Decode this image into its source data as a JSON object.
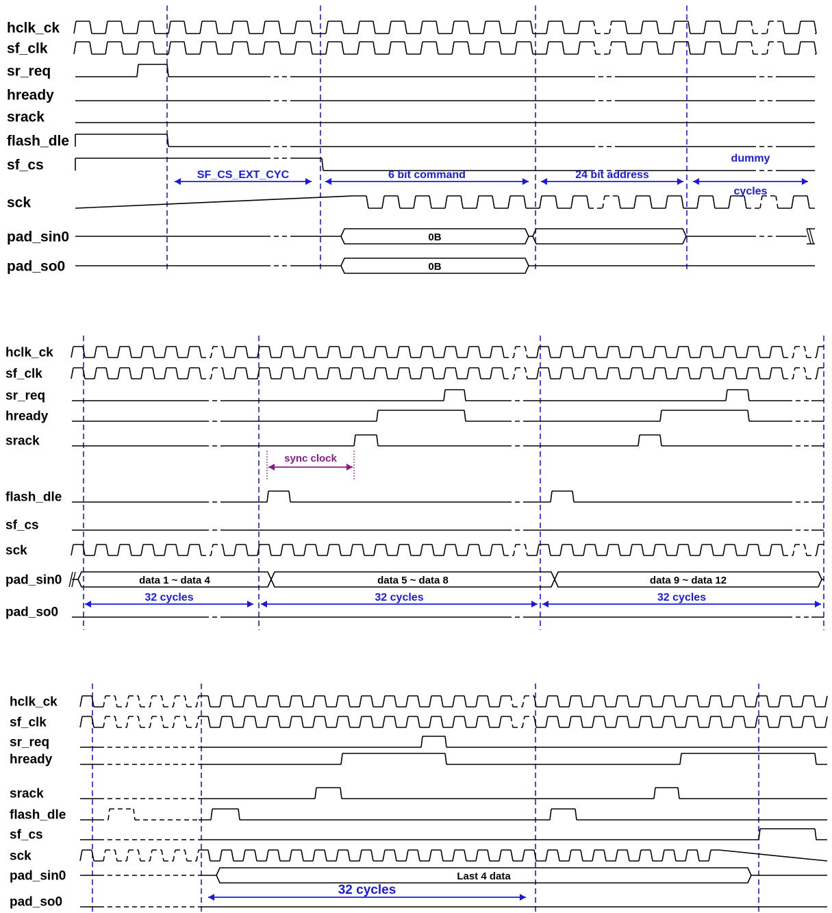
{
  "colors": {
    "signal": "#000000",
    "marker": "#1a1adf",
    "annotation": "#1a1adf",
    "sync": "#8a1a8a"
  },
  "panels": [
    {
      "signals": [
        {
          "id": "hclk",
          "label": "hclk_ck",
          "kind": "clock",
          "breaks": [
            [
              862,
              902
            ],
            [
              1097,
              1135
            ]
          ]
        },
        {
          "id": "sfclk",
          "label": "sf_clk",
          "kind": "clock",
          "breaks": [
            [
              862,
              902
            ],
            [
              1097,
              1135
            ]
          ]
        },
        {
          "id": "srreq",
          "label": "sr_req",
          "kind": "level",
          "hi": [
            [
              200,
              244
            ]
          ],
          "breaks": [
            [
              388,
              425
            ],
            [
              862,
              902
            ],
            [
              1097,
              1135
            ]
          ]
        },
        {
          "id": "hready",
          "label": "hready",
          "kind": "level",
          "hi": [],
          "breaks": [
            [
              388,
              425
            ],
            [
              862,
              902
            ],
            [
              1097,
              1135
            ]
          ]
        },
        {
          "id": "srack",
          "label": "srack",
          "kind": "level",
          "hi": [],
          "breaks": []
        },
        {
          "id": "fdle",
          "label": "flash_dle",
          "kind": "level",
          "hi": [
            [
              108,
              244
            ]
          ],
          "breaks": [
            [
              388,
              425
            ],
            [
              862,
              902
            ],
            [
              1097,
              1135
            ]
          ]
        },
        {
          "id": "sfcs",
          "label": "sf_cs",
          "kind": "level",
          "hi": [
            [
              108,
              470
            ]
          ],
          "breaks": [
            [
              388,
              425
            ],
            [
              862,
              902
            ],
            [
              1097,
              1135
            ]
          ]
        },
        {
          "id": "sck",
          "label": "sck",
          "kind": "clockwin",
          "start": 512,
          "breaks": [
            [
              388,
              425
            ],
            [
              862,
              902
            ],
            [
              1097,
              1135
            ]
          ]
        },
        {
          "id": "sin",
          "label": "pad_sin0",
          "kind": "bus",
          "segs": [
            [
              498,
              772,
              "0B"
            ],
            [
              778,
              1002,
              ""
            ]
          ],
          "breaks": [
            [
              388,
              425
            ],
            [
              1097,
              1135
            ]
          ],
          "endcap": true
        },
        {
          "id": "so",
          "label": "pad_so0",
          "kind": "bus",
          "segs": [
            [
              498,
              772,
              "0B"
            ]
          ],
          "breaks": [
            [
              388,
              425
            ]
          ]
        }
      ],
      "markers": [
        244,
        468,
        782,
        1003
      ],
      "annotations": [
        {
          "from": 255,
          "to": 455,
          "row": 6,
          "text": "SF_CS_EXT_CYC"
        },
        {
          "from": 475,
          "to": 772,
          "row": 6,
          "text": "6 bit command"
        },
        {
          "from": 790,
          "to": 998,
          "row": 6,
          "text": "24 bit address"
        },
        {
          "from": 1012,
          "to": 1180,
          "row": 6,
          "text": "dummy\ncycles"
        }
      ]
    },
    {
      "signals": [
        {
          "id": "hclk",
          "label": "hclk_ck",
          "kind": "clock",
          "breaks": [
            [
              298,
              325
            ],
            [
              740,
              770
            ],
            [
              1150,
              1185
            ]
          ]
        },
        {
          "id": "sfclk",
          "label": "sf_clk",
          "kind": "clock",
          "breaks": [
            [
              298,
              325
            ],
            [
              740,
              770
            ],
            [
              1150,
              1185
            ]
          ]
        },
        {
          "id": "srreq",
          "label": "sr_req",
          "kind": "level",
          "hi": [
            [
              648,
              678
            ],
            [
              1060,
              1092
            ]
          ],
          "breaks": [
            [
              298,
              325
            ],
            [
              740,
              770
            ],
            [
              1150,
              1185
            ]
          ]
        },
        {
          "id": "hready",
          "label": "hready",
          "kind": "level",
          "hi": [
            [
              550,
              678
            ],
            [
              964,
              1092
            ]
          ],
          "breaks": [
            [
              298,
              325
            ],
            [
              740,
              770
            ],
            [
              1150,
              1185
            ]
          ]
        },
        {
          "id": "srack",
          "label": "srack",
          "kind": "level",
          "hi": [
            [
              517,
              550
            ],
            [
              932,
              964
            ]
          ],
          "breaks": [
            [
              298,
              325
            ],
            [
              740,
              770
            ],
            [
              1150,
              1185
            ]
          ]
        },
        {
          "id": "fdle",
          "label": "flash_dle",
          "kind": "level",
          "hi": [
            [
              390,
              422
            ],
            [
              804,
              836
            ]
          ],
          "breaks": [
            [
              298,
              325
            ],
            [
              740,
              770
            ],
            [
              1150,
              1185
            ]
          ]
        },
        {
          "id": "sfcs",
          "label": "sf_cs",
          "kind": "level",
          "hi": [],
          "breaks": [
            [
              298,
              325
            ],
            [
              740,
              770
            ],
            [
              1150,
              1185
            ]
          ]
        },
        {
          "id": "sck",
          "label": "sck",
          "kind": "clock",
          "breaks": [
            [
              298,
              325
            ],
            [
              740,
              770
            ],
            [
              1150,
              1185
            ]
          ]
        },
        {
          "id": "sin",
          "label": "pad_sin0",
          "kind": "bus",
          "segs": [
            [
              114,
              396,
              "data 1 ~ data 4"
            ],
            [
              396,
              810,
              "data 5 ~ data 8"
            ],
            [
              810,
              1200,
              "data 9 ~ data 12"
            ]
          ],
          "breaks": [
            [
              298,
              325
            ],
            [
              740,
              770
            ],
            [
              1150,
              1185
            ]
          ],
          "startcap": true
        },
        {
          "id": "so",
          "label": "pad_so0",
          "kind": "level",
          "hi": [],
          "breaks": [
            [
              298,
              325
            ],
            [
              740,
              770
            ],
            [
              1150,
              1185
            ]
          ]
        }
      ],
      "markers": [
        122,
        378,
        789,
        1203
      ],
      "sync": {
        "from": 390,
        "to": 517,
        "text": "sync clock"
      },
      "annotations": [
        {
          "from": 124,
          "to": 370,
          "row": 9,
          "text": "32 cycles"
        },
        {
          "from": 381,
          "to": 785,
          "row": 9,
          "text": "32 cycles"
        },
        {
          "from": 792,
          "to": 1199,
          "row": 9,
          "text": "32 cycles"
        }
      ]
    },
    {
      "signals": [
        {
          "id": "hclk",
          "label": "hclk_ck",
          "kind": "clock",
          "breaks": [
            [
              145,
              290
            ],
            [
              740,
              775
            ]
          ]
        },
        {
          "id": "sfclk",
          "label": "sf_clk",
          "kind": "clock",
          "breaks": [
            [
              145,
              290
            ],
            [
              740,
              775
            ]
          ]
        },
        {
          "id": "srreq",
          "label": "sr_req",
          "kind": "level",
          "hi": [
            [
              615,
              650
            ]
          ],
          "breaks": [
            [
              145,
              290
            ]
          ]
        },
        {
          "id": "hready",
          "label": "hready",
          "kind": "level",
          "hi": [
            [
              498,
              650
            ],
            [
              993,
              1190
            ]
          ],
          "breaks": [
            [
              145,
              290
            ]
          ]
        },
        {
          "id": "srack",
          "label": "srack",
          "kind": "level",
          "hi": [
            [
              460,
              497
            ],
            [
              955,
              990
            ]
          ],
          "breaks": [
            [
              145,
              290
            ]
          ]
        },
        {
          "id": "fdle",
          "label": "flash_dle",
          "kind": "level",
          "hi": [
            [
              158,
              195
            ],
            [
              308,
              348
            ],
            [
              803,
              840
            ]
          ],
          "breaks": [
            [
              145,
              290
            ]
          ]
        },
        {
          "id": "sfcs",
          "label": "sf_cs",
          "kind": "level",
          "hi": [
            [
              1108,
              1190
            ]
          ],
          "breaks": [
            [
              145,
              290
            ]
          ]
        },
        {
          "id": "sck",
          "label": "sck",
          "kind": "clockwin",
          "start": 117,
          "end": 1050,
          "breaks": [
            [
              145,
              290
            ]
          ]
        },
        {
          "id": "sin",
          "label": "pad_sin0",
          "kind": "bus",
          "segs": [
            [
              316,
              1097,
              "Last 4 data"
            ]
          ],
          "breaks": [
            [
              145,
              290
            ]
          ],
          "trail": true
        },
        {
          "id": "so",
          "label": "pad_so0",
          "kind": "level",
          "hi": [],
          "breaks": [
            [
              145,
              290
            ]
          ]
        }
      ],
      "markers": [
        135,
        294,
        782,
        1108
      ],
      "annotations": [
        {
          "from": 304,
          "to": 768,
          "row": 9,
          "text": "32 cycles"
        }
      ]
    }
  ]
}
